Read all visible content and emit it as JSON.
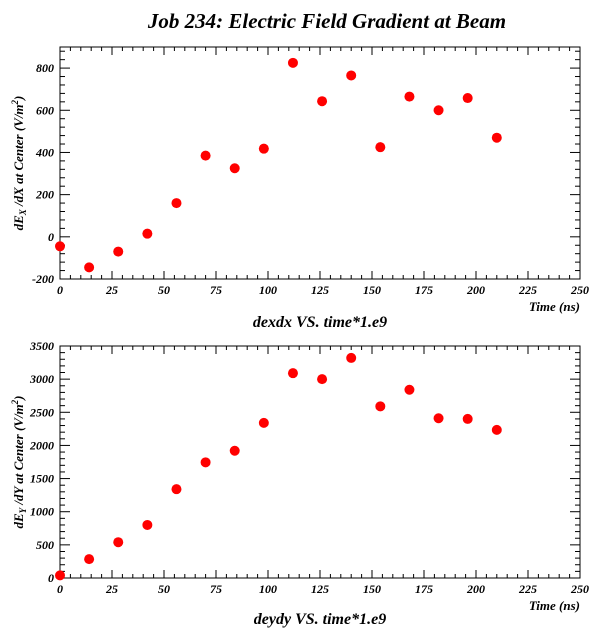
{
  "page_title": "Job 234: Electric Field Gradient at Beam",
  "chart_data": [
    {
      "type": "scatter",
      "title": "dexdx VS. time*1.e9",
      "xlabel": "Time (ns)",
      "ylabel_parts": [
        "dE",
        "X",
        " /dX at Center (V/m",
        "2",
        ")"
      ],
      "xlim": [
        0,
        250
      ],
      "ylim": [
        -200,
        900
      ],
      "x_ticks": [
        0,
        25,
        50,
        75,
        100,
        125,
        150,
        175,
        200,
        225,
        250
      ],
      "y_ticks": [
        -200,
        0,
        200,
        400,
        600,
        800
      ],
      "marker_color": "#ff0000",
      "x": [
        0,
        14,
        28,
        42,
        56,
        70,
        84,
        98,
        112,
        126,
        140,
        154,
        168,
        182,
        196,
        210
      ],
      "y": [
        -45,
        -145,
        -70,
        15,
        160,
        385,
        325,
        418,
        825,
        643,
        765,
        425,
        665,
        600,
        658,
        470
      ]
    },
    {
      "type": "scatter",
      "title": "deydy VS. time*1.e9",
      "xlabel": "Time (ns)",
      "ylabel_parts": [
        "dE",
        "Y",
        " /dY at Center (V/m",
        "2",
        ")"
      ],
      "xlim": [
        0,
        250
      ],
      "ylim": [
        0,
        3500
      ],
      "x_ticks": [
        0,
        25,
        50,
        75,
        100,
        125,
        150,
        175,
        200,
        225,
        250
      ],
      "y_ticks": [
        0,
        500,
        1000,
        1500,
        2000,
        2500,
        3000,
        3500
      ],
      "marker_color": "#ff0000",
      "x": [
        0,
        14,
        28,
        42,
        56,
        70,
        84,
        98,
        112,
        126,
        140,
        154,
        168,
        182,
        196,
        210
      ],
      "y": [
        40,
        285,
        540,
        800,
        1340,
        1745,
        1920,
        2340,
        3090,
        3000,
        3320,
        2590,
        2840,
        2410,
        2400,
        2235
      ]
    }
  ]
}
